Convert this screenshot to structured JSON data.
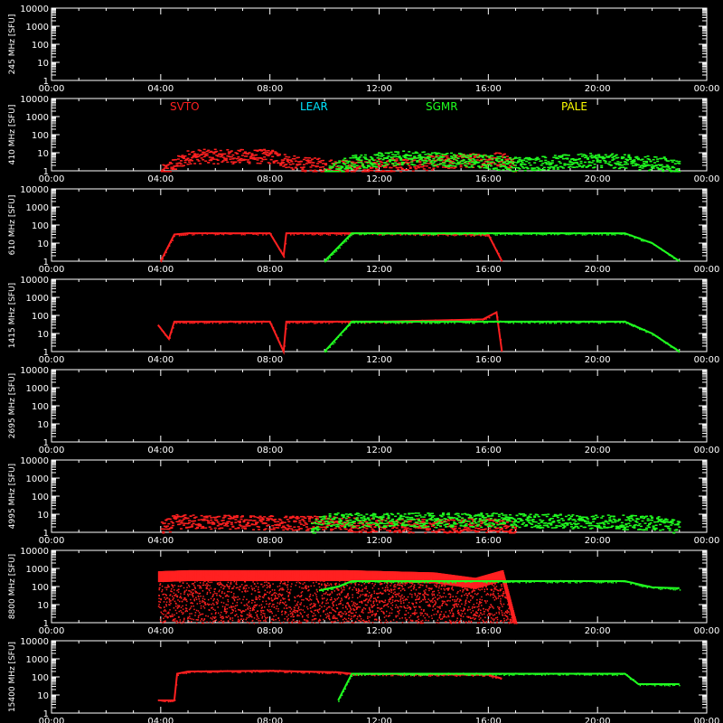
{
  "chart_data": {
    "type": "scatter",
    "x_axis": {
      "range": [
        "00:00",
        "24:00"
      ],
      "ticks": [
        "00:00",
        "04:00",
        "08:00",
        "12:00",
        "16:00",
        "20:00",
        "00:00"
      ]
    },
    "y_axis": {
      "scale": "log",
      "range": [
        1,
        10000
      ],
      "ticks": [
        "1",
        "10",
        "100",
        "1000",
        "10000"
      ]
    },
    "legend": {
      "placement": "top",
      "entries": [
        {
          "name": "SVTO",
          "color": "#ff2020"
        },
        {
          "name": "LEAR",
          "color": "#00e5ff"
        },
        {
          "name": "SGMR",
          "color": "#20ff20"
        },
        {
          "name": "PALE",
          "color": "#ffff00"
        }
      ]
    },
    "panels": [
      {
        "ylabel": "245 MHz [SFU]",
        "series": []
      },
      {
        "ylabel": "410 MHz [SFU]",
        "series": [
          {
            "name": "SVTO",
            "color": "#ff2020",
            "style": "band",
            "points": [
              [
                4.0,
                1
              ],
              [
                4.5,
                3
              ],
              [
                5.0,
                8
              ],
              [
                8.0,
                8
              ],
              [
                9.0,
                3
              ],
              [
                11.0,
                2
              ],
              [
                16.5,
                6
              ],
              [
                17.0,
                2
              ]
            ]
          },
          {
            "name": "SGMR",
            "color": "#20ff20",
            "style": "band",
            "points": [
              [
                10.0,
                1
              ],
              [
                11.0,
                4
              ],
              [
                13.0,
                7
              ],
              [
                15.0,
                5
              ],
              [
                17.0,
                3
              ],
              [
                20.0,
                5
              ],
              [
                22.5,
                3
              ],
              [
                23.0,
                2
              ]
            ]
          }
        ]
      },
      {
        "ylabel": "610 MHz [SFU]",
        "series": [
          {
            "name": "SVTO",
            "color": "#ff2020",
            "style": "line",
            "points": [
              [
                4.0,
                1
              ],
              [
                4.5,
                30
              ],
              [
                5.0,
                35
              ],
              [
                8.0,
                35
              ],
              [
                8.5,
                2
              ],
              [
                8.6,
                35
              ],
              [
                12.0,
                35
              ],
              [
                16.0,
                30
              ],
              [
                16.5,
                1
              ]
            ]
          },
          {
            "name": "SGMR",
            "color": "#20ff20",
            "style": "line",
            "points": [
              [
                10.0,
                1
              ],
              [
                11.0,
                35
              ],
              [
                16.0,
                35
              ],
              [
                21.0,
                35
              ],
              [
                22.0,
                10
              ],
              [
                23.0,
                1
              ]
            ]
          }
        ]
      },
      {
        "ylabel": "1415 MHz [SFU]",
        "series": [
          {
            "name": "SVTO",
            "color": "#ff2020",
            "style": "line",
            "points": [
              [
                3.9,
                30
              ],
              [
                4.3,
                5
              ],
              [
                4.5,
                45
              ],
              [
                8.0,
                45
              ],
              [
                8.5,
                1
              ],
              [
                8.6,
                45
              ],
              [
                12.0,
                45
              ],
              [
                15.8,
                60
              ],
              [
                16.3,
                150
              ],
              [
                16.5,
                1
              ]
            ]
          },
          {
            "name": "SGMR",
            "color": "#20ff20",
            "style": "line",
            "points": [
              [
                10.0,
                1
              ],
              [
                11.0,
                45
              ],
              [
                16.0,
                45
              ],
              [
                21.0,
                45
              ],
              [
                22.0,
                10
              ],
              [
                23.0,
                1
              ]
            ]
          }
        ]
      },
      {
        "ylabel": "2695 MHz [SFU]",
        "series": []
      },
      {
        "ylabel": "4995 MHz [SFU]",
        "series": [
          {
            "name": "SVTO",
            "color": "#ff2020",
            "style": "band",
            "points": [
              [
                4.0,
                2
              ],
              [
                4.5,
                5
              ],
              [
                10.0,
                4
              ],
              [
                12.0,
                3
              ],
              [
                16.5,
                3
              ],
              [
                17.0,
                2
              ]
            ]
          },
          {
            "name": "SGMR",
            "color": "#20ff20",
            "style": "band",
            "points": [
              [
                9.5,
                2
              ],
              [
                10.0,
                6
              ],
              [
                16.0,
                6
              ],
              [
                20.0,
                5
              ],
              [
                22.5,
                4
              ],
              [
                23.0,
                2
              ]
            ]
          }
        ]
      },
      {
        "ylabel": "8800 MHz [SFU]",
        "series": [
          {
            "name": "SVTO",
            "color": "#ff2020",
            "style": "scatter",
            "points": [
              [
                3.9,
                700
              ],
              [
                5.0,
                800
              ],
              [
                8.0,
                800
              ],
              [
                10.8,
                800
              ],
              [
                14.0,
                600
              ],
              [
                15.5,
                300
              ],
              [
                16.5,
                800
              ],
              [
                17.0,
                1
              ]
            ]
          },
          {
            "name": "SGMR",
            "color": "#20ff20",
            "style": "line",
            "points": [
              [
                9.8,
                60
              ],
              [
                10.5,
                100
              ],
              [
                11.0,
                200
              ],
              [
                16.0,
                200
              ],
              [
                21.0,
                200
              ],
              [
                22.0,
                90
              ],
              [
                23.0,
                80
              ]
            ]
          }
        ]
      },
      {
        "ylabel": "15400 MHz [SFU]",
        "series": [
          {
            "name": "SVTO",
            "color": "#ff2020",
            "style": "line",
            "points": [
              [
                3.9,
                5
              ],
              [
                4.5,
                5
              ],
              [
                4.6,
                150
              ],
              [
                5.0,
                200
              ],
              [
                8.0,
                220
              ],
              [
                10.5,
                180
              ],
              [
                11.0,
                150
              ],
              [
                16.0,
                130
              ],
              [
                16.5,
                80
              ]
            ]
          },
          {
            "name": "SGMR",
            "color": "#20ff20",
            "style": "line",
            "points": [
              [
                10.5,
                5
              ],
              [
                11.0,
                150
              ],
              [
                16.0,
                150
              ],
              [
                21.0,
                150
              ],
              [
                21.5,
                40
              ],
              [
                23.0,
                40
              ]
            ]
          }
        ]
      }
    ]
  }
}
